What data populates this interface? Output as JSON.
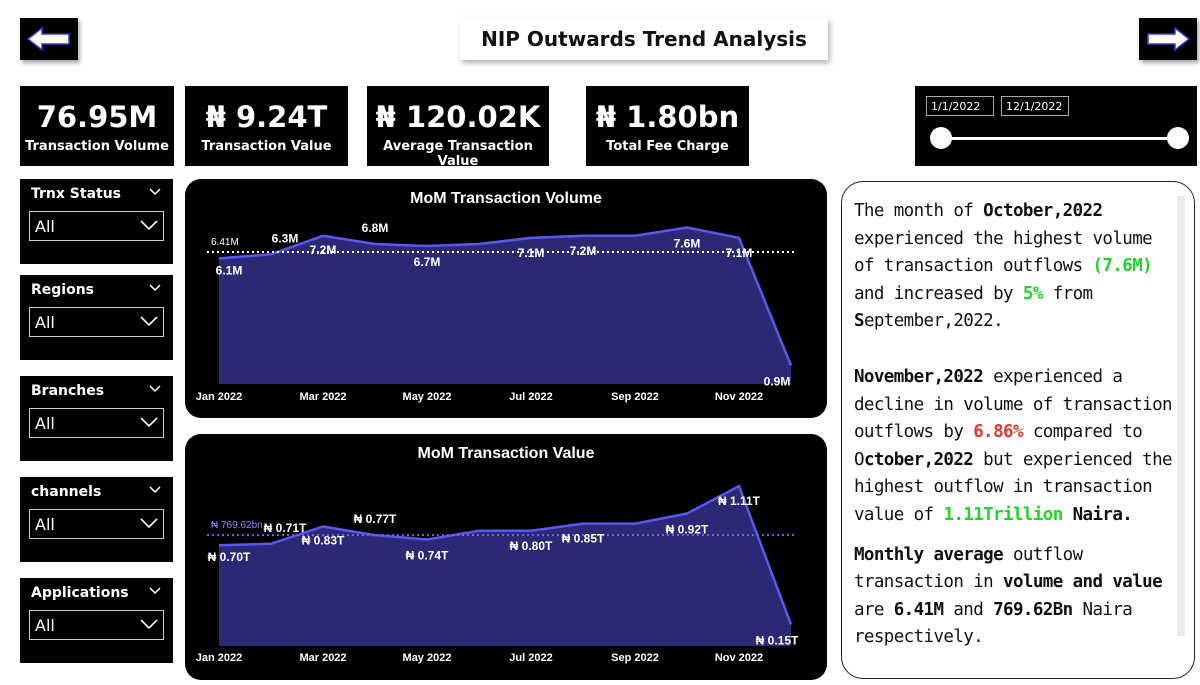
{
  "header": {
    "title": "NIP Outwards Trend Analysis",
    "back_icon": "arrow-left-icon",
    "forward_icon": "arrow-right-icon"
  },
  "kpis": [
    {
      "value": "76.95M",
      "label": "Transaction Volume"
    },
    {
      "value": "₦ 9.24T",
      "label": "Transaction Value"
    },
    {
      "value": "₦ 120.02K",
      "label": "Average Transaction Value"
    },
    {
      "value": "₦ 1.80bn",
      "label": "Total Fee Charge"
    }
  ],
  "slicers": [
    {
      "title": "Trnx Status",
      "selected": "All"
    },
    {
      "title": "Regions",
      "selected": "All"
    },
    {
      "title": "Branches",
      "selected": "All"
    },
    {
      "title": "channels",
      "selected": "All"
    },
    {
      "title": "Applications",
      "selected": "All"
    }
  ],
  "date_range": {
    "start": "1/1/2022",
    "end": "12/1/2022"
  },
  "chart_data": [
    {
      "type": "area",
      "title": "MoM Transaction Volume",
      "categories": [
        "Jan 2022",
        "Feb 2022",
        "Mar 2022",
        "Apr 2022",
        "May 2022",
        "Jun 2022",
        "Jul 2022",
        "Aug 2022",
        "Sep 2022",
        "Oct 2022",
        "Nov 2022",
        "Dec 2022"
      ],
      "tick_labels": [
        "Jan 2022",
        "Mar 2022",
        "May 2022",
        "Jul 2022",
        "Sep 2022",
        "Nov 2022"
      ],
      "values": [
        6.1,
        6.3,
        7.2,
        6.8,
        6.7,
        6.8,
        7.1,
        7.2,
        7.2,
        7.6,
        7.1,
        0.9
      ],
      "data_labels": [
        "6.1M",
        "6.3M",
        "7.2M",
        "6.8M",
        "6.7M",
        "",
        "7.1M",
        "7.2M",
        "",
        "7.6M",
        "7.1M",
        "0.9M"
      ],
      "average_line": {
        "value": 6.41,
        "label": "6.41M"
      },
      "ylim": [
        0,
        8.5
      ],
      "grid": false,
      "line_color": "#5c57ef",
      "fill_color": "#2b2875"
    },
    {
      "type": "area",
      "title": "MoM Transaction Value",
      "categories": [
        "Jan 2022",
        "Feb 2022",
        "Mar 2022",
        "Apr 2022",
        "May 2022",
        "Jun 2022",
        "Jul 2022",
        "Aug 2022",
        "Sep 2022",
        "Oct 2022",
        "Nov 2022",
        "Dec 2022"
      ],
      "tick_labels": [
        "Jan 2022",
        "Mar 2022",
        "May 2022",
        "Jul 2022",
        "Sep 2022",
        "Nov 2022"
      ],
      "values": [
        0.7,
        0.71,
        0.83,
        0.77,
        0.74,
        0.8,
        0.8,
        0.85,
        0.85,
        0.92,
        1.11,
        0.15
      ],
      "data_labels": [
        "₦ 0.70T",
        "₦ 0.71T",
        "₦ 0.83T",
        "₦ 0.77T",
        "₦ 0.74T",
        "",
        "₦ 0.80T",
        "₦ 0.85T",
        "",
        "₦ 0.92T",
        "₦ 1.11T",
        "₦ 0.15T"
      ],
      "average_line": {
        "value": 0.76962,
        "label": "₦ 769.62bn"
      },
      "ylim": [
        0,
        1.25
      ],
      "grid": false,
      "line_color": "#5c57ef",
      "fill_color": "#2b2875"
    }
  ],
  "insights": {
    "p1": [
      "The month of ",
      "October,2022",
      " experienced the highest volume of transaction outflows ",
      "(7.6M)",
      " and increased by ",
      "5%",
      " from ",
      "S",
      "eptember,2022."
    ],
    "p2": [
      "November,2022",
      " experienced a decline in volume of transaction outflows by ",
      "6.86%",
      " compared to ",
      "O",
      "ctober,2022",
      " but experienced the highest outflow in transaction value of ",
      "1.11Trillion",
      " ",
      "Naira."
    ],
    "p3": [
      "Monthly average",
      " outflow transaction in ",
      "volume and value",
      " are ",
      "6.41M",
      " and ",
      "769.62Bn",
      " Naira respectively."
    ]
  },
  "colors": {
    "accent": "#5c57ef",
    "highlight_green": "#22d32a",
    "highlight_red": "#e23a2e"
  }
}
